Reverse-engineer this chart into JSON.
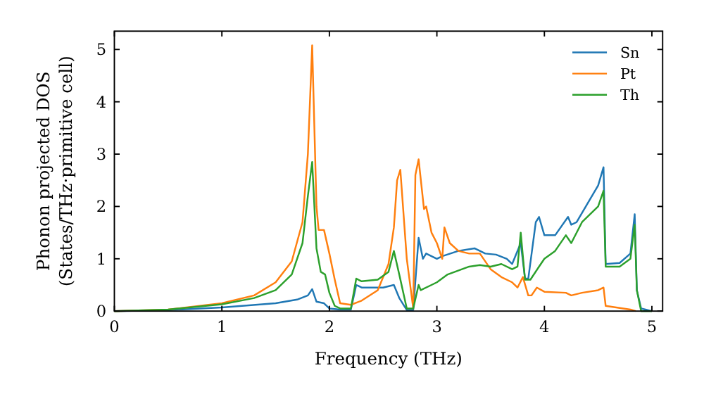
{
  "chart_data": {
    "type": "line",
    "xlabel": "Frequency (THz)",
    "ylabel": "Phonon projected DOS\n(States/THz·primitive cell)",
    "xlim": [
      0,
      5.1
    ],
    "ylim": [
      0,
      5.35
    ],
    "xticks": [
      0,
      1,
      2,
      3,
      4,
      5
    ],
    "yticks": [
      0,
      1,
      2,
      3,
      4,
      5
    ],
    "legend": "top right",
    "grid": false,
    "marker": "none",
    "line_style": "solid",
    "series": [
      {
        "name": "Sn",
        "color": "#1f77b4",
        "x": [
          0,
          0.5,
          1.0,
          1.5,
          1.7,
          1.8,
          1.84,
          1.88,
          1.95,
          2.0,
          2.1,
          2.2,
          2.25,
          2.3,
          2.5,
          2.6,
          2.65,
          2.72,
          2.78,
          2.83,
          2.87,
          2.9,
          3.0,
          3.05,
          3.2,
          3.35,
          3.45,
          3.55,
          3.65,
          3.7,
          3.78,
          3.82,
          3.85,
          3.92,
          3.95,
          4.0,
          4.1,
          4.22,
          4.25,
          4.3,
          4.4,
          4.5,
          4.55,
          4.57,
          4.7,
          4.8,
          4.84,
          4.86,
          4.9,
          5.0
        ],
        "values": [
          0,
          0.02,
          0.07,
          0.15,
          0.22,
          0.3,
          0.42,
          0.18,
          0.15,
          0.05,
          0.03,
          0.03,
          0.5,
          0.45,
          0.45,
          0.5,
          0.25,
          0.02,
          0.02,
          1.4,
          1.0,
          1.1,
          1.0,
          1.05,
          1.15,
          1.2,
          1.1,
          1.08,
          1.0,
          0.9,
          1.3,
          0.62,
          0.62,
          1.7,
          1.8,
          1.45,
          1.45,
          1.8,
          1.65,
          1.7,
          2.05,
          2.4,
          2.75,
          0.9,
          0.92,
          1.1,
          1.85,
          0.4,
          0.05,
          0
        ]
      },
      {
        "name": "Pt",
        "color": "#ff7f0e",
        "x": [
          0,
          0.5,
          1.0,
          1.3,
          1.5,
          1.65,
          1.75,
          1.8,
          1.84,
          1.88,
          1.9,
          1.95,
          2.0,
          2.05,
          2.1,
          2.2,
          2.3,
          2.45,
          2.55,
          2.6,
          2.63,
          2.66,
          2.72,
          2.78,
          2.8,
          2.83,
          2.88,
          2.9,
          2.95,
          3.0,
          3.05,
          3.07,
          3.12,
          3.2,
          3.3,
          3.4,
          3.5,
          3.6,
          3.7,
          3.75,
          3.8,
          3.85,
          3.88,
          3.93,
          4.0,
          4.2,
          4.25,
          4.35,
          4.5,
          4.55,
          4.57,
          4.8,
          4.85
        ],
        "values": [
          0,
          0.03,
          0.15,
          0.3,
          0.55,
          0.95,
          1.7,
          3.0,
          5.08,
          2.0,
          1.55,
          1.55,
          1.1,
          0.6,
          0.15,
          0.12,
          0.2,
          0.4,
          0.9,
          1.6,
          2.5,
          2.7,
          1.0,
          0.05,
          2.6,
          2.9,
          1.95,
          2.0,
          1.5,
          1.3,
          1.0,
          1.6,
          1.3,
          1.15,
          1.1,
          1.1,
          0.8,
          0.65,
          0.55,
          0.45,
          0.65,
          0.3,
          0.3,
          0.45,
          0.37,
          0.35,
          0.3,
          0.35,
          0.4,
          0.45,
          0.1,
          0.03,
          0
        ]
      },
      {
        "name": "Th",
        "color": "#2ca02c",
        "x": [
          0,
          0.5,
          1.0,
          1.3,
          1.5,
          1.65,
          1.75,
          1.8,
          1.84,
          1.88,
          1.92,
          1.96,
          2.0,
          2.05,
          2.1,
          2.2,
          2.25,
          2.3,
          2.45,
          2.55,
          2.6,
          2.65,
          2.72,
          2.78,
          2.83,
          2.85,
          2.95,
          3.0,
          3.1,
          3.3,
          3.4,
          3.5,
          3.6,
          3.7,
          3.75,
          3.78,
          3.82,
          3.87,
          3.95,
          4.0,
          4.1,
          4.2,
          4.25,
          4.35,
          4.5,
          4.55,
          4.57,
          4.7,
          4.8,
          4.84,
          4.86,
          4.9,
          5.0
        ],
        "values": [
          0,
          0.03,
          0.13,
          0.25,
          0.4,
          0.7,
          1.3,
          2.2,
          2.85,
          1.2,
          0.75,
          0.7,
          0.35,
          0.1,
          0.05,
          0.05,
          0.62,
          0.57,
          0.6,
          0.75,
          1.15,
          0.7,
          0.05,
          0.05,
          0.5,
          0.4,
          0.5,
          0.55,
          0.7,
          0.85,
          0.88,
          0.85,
          0.9,
          0.8,
          0.85,
          1.5,
          0.6,
          0.6,
          0.85,
          1.0,
          1.15,
          1.45,
          1.3,
          1.7,
          2.0,
          2.3,
          0.85,
          0.85,
          1.0,
          1.65,
          0.4,
          0,
          0
        ]
      }
    ]
  }
}
